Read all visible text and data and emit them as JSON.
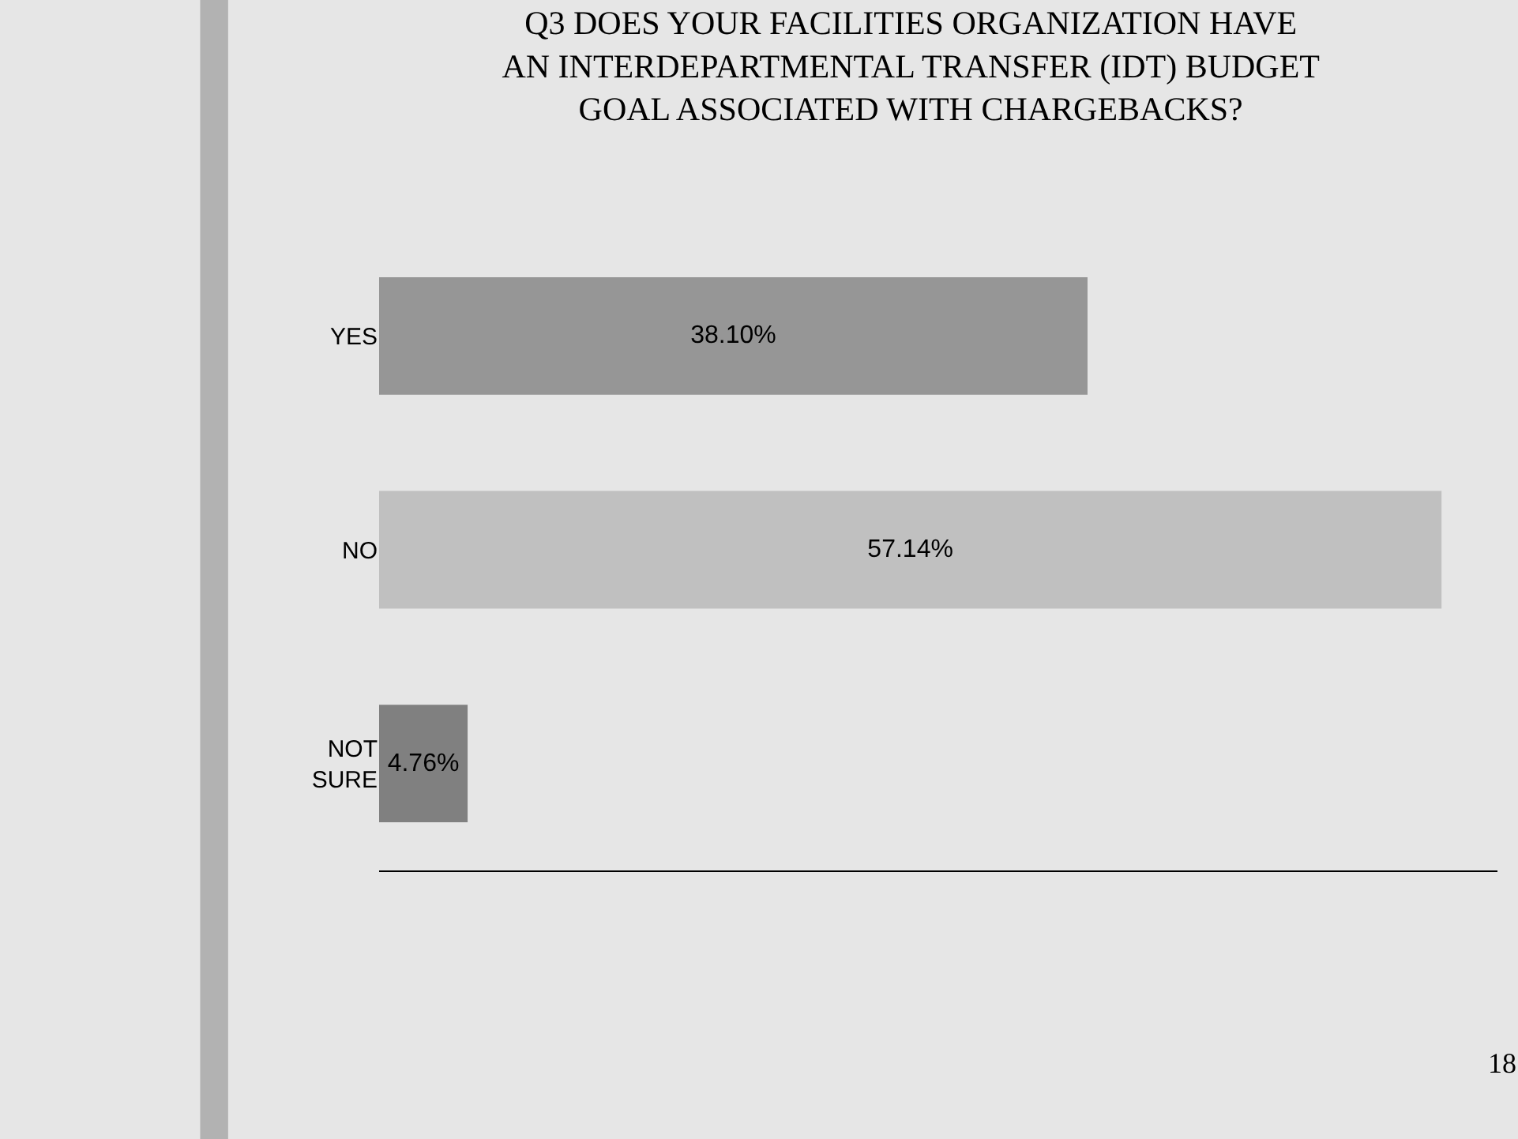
{
  "chart_data": {
    "type": "bar",
    "orientation": "horizontal",
    "title": "Q3 DOES YOUR FACILITIES ORGANIZATION HAVE AN INTERDEPARTMENTAL TRANSFER (IDT) BUDGET GOAL ASSOCIATED WITH CHARGEBACKS?",
    "categories": [
      "YES",
      "NO",
      "NOT SURE"
    ],
    "values": [
      38.1,
      57.14,
      4.76
    ],
    "colors": [
      "#969696",
      "#c0c0c0",
      "#808080"
    ],
    "value_labels": [
      "38.10%",
      "57.14%",
      "4.76%"
    ],
    "annotations": [
      "18"
    ],
    "grid": false,
    "legend": false
  }
}
